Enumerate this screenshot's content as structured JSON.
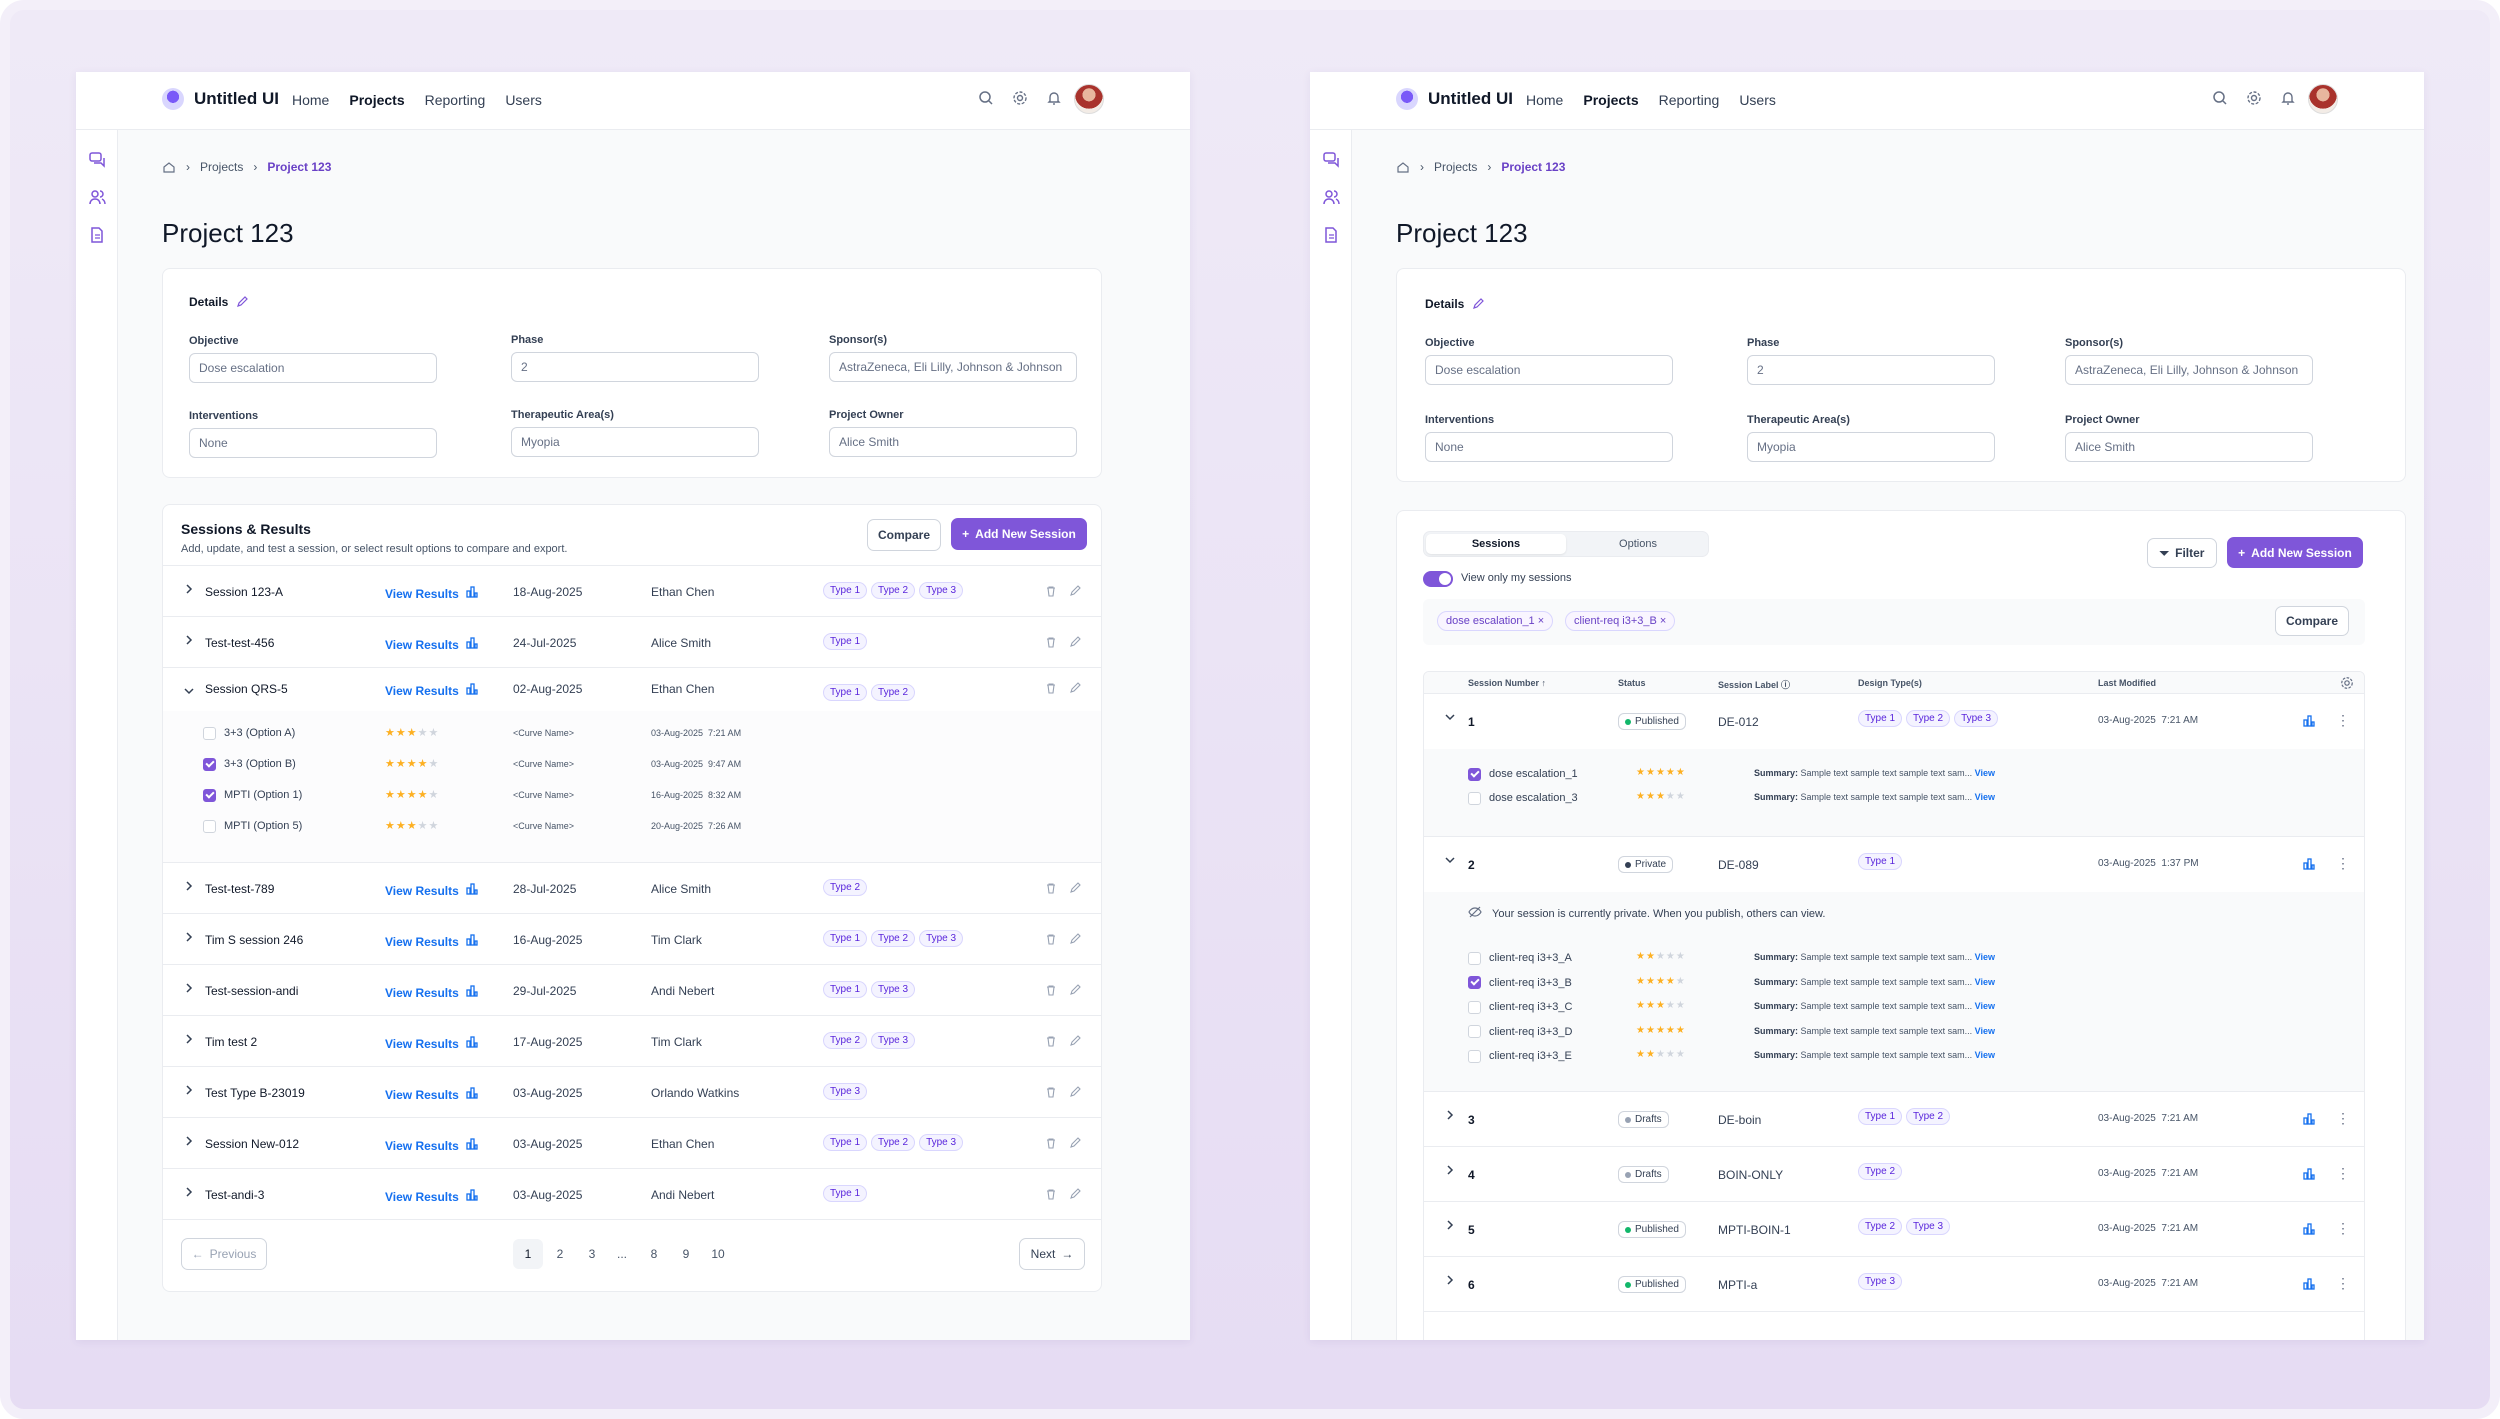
{
  "app": {
    "name": "Untitled UI",
    "nav": [
      "Home",
      "Projects",
      "Reporting",
      "Users"
    ],
    "active_nav": "Projects"
  },
  "breadcrumb": {
    "items": [
      "Projects",
      "Project 123"
    ]
  },
  "page_title": "Project 123",
  "details": {
    "title": "Details",
    "fields": [
      {
        "label": "Objective",
        "value": "Dose escalation"
      },
      {
        "label": "Phase",
        "value": "2"
      },
      {
        "label": "Sponsor(s)",
        "value": "AstraZeneca, Eli Lilly, Johnson & Johnson"
      },
      {
        "label": "Interventions",
        "value": "None"
      },
      {
        "label": "Therapeutic Area(s)",
        "value": "Myopia"
      },
      {
        "label": "Project Owner",
        "value": "Alice Smith"
      }
    ]
  },
  "left": {
    "sessions_title": "Sessions & Results",
    "sessions_subtitle": "Add, update, and test a session, or select result options to compare and export.",
    "compare_label": "Compare",
    "add_label": "Add New Session",
    "view_results": "View Results",
    "rows": [
      {
        "name": "Session 123-A",
        "date": "18-Aug-2025",
        "owner": "Ethan Chen",
        "tags": [
          "Type 1",
          "Type 2",
          "Type 3"
        ]
      },
      {
        "name": "Test-test-456",
        "date": "24-Jul-2025",
        "owner": "Alice Smith",
        "tags": [
          "Type 1"
        ]
      },
      {
        "name": "Session QRS-5",
        "date": "02-Aug-2025",
        "owner": "Ethan Chen",
        "tags": [
          "Type 1",
          "Type 2"
        ],
        "expanded": true
      },
      {
        "name": "Test-test-789",
        "date": "28-Jul-2025",
        "owner": "Alice Smith",
        "tags": [
          "Type 2"
        ]
      },
      {
        "name": "Tim S session 246",
        "date": "16-Aug-2025",
        "owner": "Tim Clark",
        "tags": [
          "Type 1",
          "Type 2",
          "Type 3"
        ]
      },
      {
        "name": "Test-session-andi",
        "date": "29-Jul-2025",
        "owner": "Andi Nebert",
        "tags": [
          "Type 1",
          "Type 3"
        ]
      },
      {
        "name": "Tim test 2",
        "date": "17-Aug-2025",
        "owner": "Tim Clark",
        "tags": [
          "Type 2",
          "Type 3"
        ]
      },
      {
        "name": "Test Type B-23019",
        "date": "03-Aug-2025",
        "owner": "Orlando Watkins",
        "tags": [
          "Type 3"
        ]
      },
      {
        "name": "Session New-012",
        "date": "03-Aug-2025",
        "owner": "Ethan Chen",
        "tags": [
          "Type 1",
          "Type 2",
          "Type 3"
        ]
      },
      {
        "name": "Test-andi-3",
        "date": "03-Aug-2025",
        "owner": "Andi Nebert",
        "tags": [
          "Type 1"
        ]
      }
    ],
    "options": [
      {
        "name": "3+3 (Option A)",
        "checked": false,
        "stars": 3,
        "curve": "<Curve Name>",
        "date": "03-Aug-2025  7:21 AM"
      },
      {
        "name": "3+3 (Option B)",
        "checked": true,
        "stars": 4,
        "curve": "<Curve Name>",
        "date": "03-Aug-2025  9:47 AM"
      },
      {
        "name": "MPTI (Option 1)",
        "checked": true,
        "stars": 4,
        "curve": "<Curve Name>",
        "date": "16-Aug-2025  8:32 AM"
      },
      {
        "name": "MPTI (Option 5)",
        "checked": false,
        "stars": 3,
        "curve": "<Curve Name>",
        "date": "20-Aug-2025  7:26 AM"
      }
    ],
    "pagination": {
      "previous": "Previous",
      "next": "Next",
      "pages": [
        "1",
        "2",
        "3",
        "...",
        "8",
        "9",
        "10"
      ],
      "current": "1"
    }
  },
  "right": {
    "tabs": [
      "Sessions",
      "Options"
    ],
    "toggle_label": "View only my sessions",
    "filter_label": "Filter",
    "add_label": "Add New Session",
    "compare_label": "Compare",
    "chips": [
      "dose escalation_1",
      "client-req i3+3_B"
    ],
    "columns": [
      "Session Number",
      "Status",
      "Session Label",
      "Design Type(s)",
      "Last Modified"
    ],
    "private_notice": "Your session is currently private. When you publish, others can view.",
    "summary_label": "Summary:",
    "summary_text": "Sample text sample text sample text sam...",
    "view_label": "View",
    "rows": [
      {
        "num": "1",
        "status": "Published",
        "label": "DE-012",
        "tags": [
          "Type 1",
          "Type 2",
          "Type 3"
        ],
        "modified": "03-Aug-2025  7:21 AM"
      },
      {
        "num": "2",
        "status": "Private",
        "label": "DE-089",
        "tags": [
          "Type 1"
        ],
        "modified": "03-Aug-2025  1:37 PM"
      },
      {
        "num": "3",
        "status": "Drafts",
        "label": "DE-boin",
        "tags": [
          "Type 1",
          "Type 2"
        ],
        "modified": "03-Aug-2025  7:21 AM"
      },
      {
        "num": "4",
        "status": "Drafts",
        "label": "BOIN-ONLY",
        "tags": [
          "Type 2"
        ],
        "modified": "03-Aug-2025  7:21 AM"
      },
      {
        "num": "5",
        "status": "Published",
        "label": "MPTI-BOIN-1",
        "tags": [
          "Type 2",
          "Type 3"
        ],
        "modified": "03-Aug-2025  7:21 AM"
      },
      {
        "num": "6",
        "status": "Published",
        "label": "MPTI-a",
        "tags": [
          "Type 3"
        ],
        "modified": "03-Aug-2025  7:21 AM"
      }
    ],
    "sub1": [
      {
        "name": "dose escalation_1",
        "checked": true,
        "stars": 5
      },
      {
        "name": "dose escalation_3",
        "checked": false,
        "stars": 3
      }
    ],
    "sub2": [
      {
        "name": "client-req i3+3_A",
        "checked": false,
        "stars": 2
      },
      {
        "name": "client-req i3+3_B",
        "checked": true,
        "stars": 4
      },
      {
        "name": "client-req i3+3_C",
        "checked": false,
        "stars": 3
      },
      {
        "name": "client-req i3+3_D",
        "checked": false,
        "stars": 5
      },
      {
        "name": "client-req i3+3_E",
        "checked": false,
        "stars": 2
      }
    ]
  },
  "colors": {
    "accent": "#7f56d9",
    "link": "#1570ef",
    "published": "#12b76a",
    "private": "#344054",
    "drafts": "#98a2b3"
  }
}
